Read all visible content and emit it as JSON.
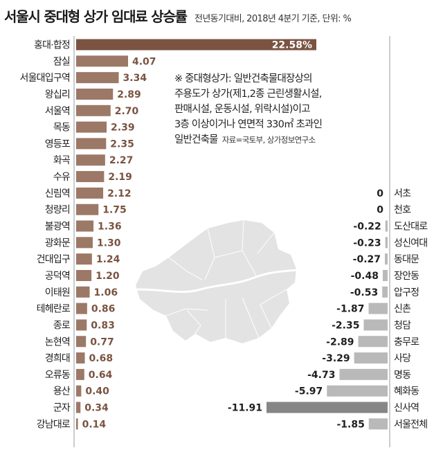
{
  "title": "서울시 중대형 상가 임대료 상승률",
  "subtitle": "전년동기대비, 2018년 4분기 기준, 단위: %",
  "note": {
    "lines": [
      "※ 중대형상가: 일반건축물대장상의",
      "주용도가 상가(제1,2종 근린생활시설,",
      "판매시설, 운동시설, 위락시설)이고",
      "3층 이상이거나 연면적 330㎡ 초과인",
      "일반건축물"
    ],
    "source": "자료=국토부, 상가정보연구소"
  },
  "colors": {
    "positive_bar": "#9c7866",
    "top_bar": "#7a5341",
    "negative_bar": "#b9b9b9",
    "lowest_bar": "#868686",
    "positive_value_text": "#7a5341",
    "map_fill": "#e3e3e3"
  },
  "chart_data": [
    {
      "type": "bar",
      "orientation": "horizontal",
      "categories": [
        "홍대·합정",
        "잠실",
        "서울대입구역",
        "왕십리",
        "서울역",
        "목동",
        "영등포",
        "화곡",
        "수유",
        "신림역",
        "청량리",
        "불광역",
        "광화문",
        "건대입구",
        "공덕역",
        "이태원",
        "테헤란로",
        "종로",
        "논현역",
        "경희대",
        "오류동",
        "용산",
        "군자",
        "강남대로"
      ],
      "values": [
        22.58,
        4.07,
        3.34,
        2.89,
        2.7,
        2.39,
        2.35,
        2.27,
        2.19,
        2.12,
        1.75,
        1.36,
        1.3,
        1.24,
        1.2,
        1.06,
        0.86,
        0.83,
        0.77,
        0.68,
        0.64,
        0.4,
        0.34,
        0.14
      ],
      "labels": [
        "22.58%",
        "4.07",
        "3.34",
        "2.89",
        "2.70",
        "2.39",
        "2.35",
        "2.27",
        "2.19",
        "2.12",
        "1.75",
        "1.36",
        "1.30",
        "1.24",
        "1.20",
        "1.06",
        "0.86",
        "0.83",
        "0.77",
        "0.68",
        "0.64",
        "0.40",
        "0.34",
        "0.14"
      ]
    },
    {
      "type": "bar",
      "orientation": "horizontal",
      "categories": [
        "서초",
        "천호",
        "도산대로",
        "성신여대",
        "동대문",
        "장안동",
        "압구정",
        "신촌",
        "청담",
        "충무로",
        "사당",
        "명동",
        "혜화동",
        "신사역",
        "서울전체"
      ],
      "values": [
        0,
        0,
        -0.22,
        -0.23,
        -0.27,
        -0.48,
        -0.53,
        -1.87,
        -2.35,
        -2.89,
        -3.29,
        -4.73,
        -5.97,
        -11.91,
        -1.85
      ],
      "labels": [
        "0",
        "0",
        "-0.22",
        "-0.23",
        "-0.27",
        "-0.48",
        "-0.53",
        "-1.87",
        "-2.35",
        "-2.89",
        "-3.29",
        "-4.73",
        "-5.97",
        "-11.91",
        "-1.85"
      ]
    }
  ]
}
